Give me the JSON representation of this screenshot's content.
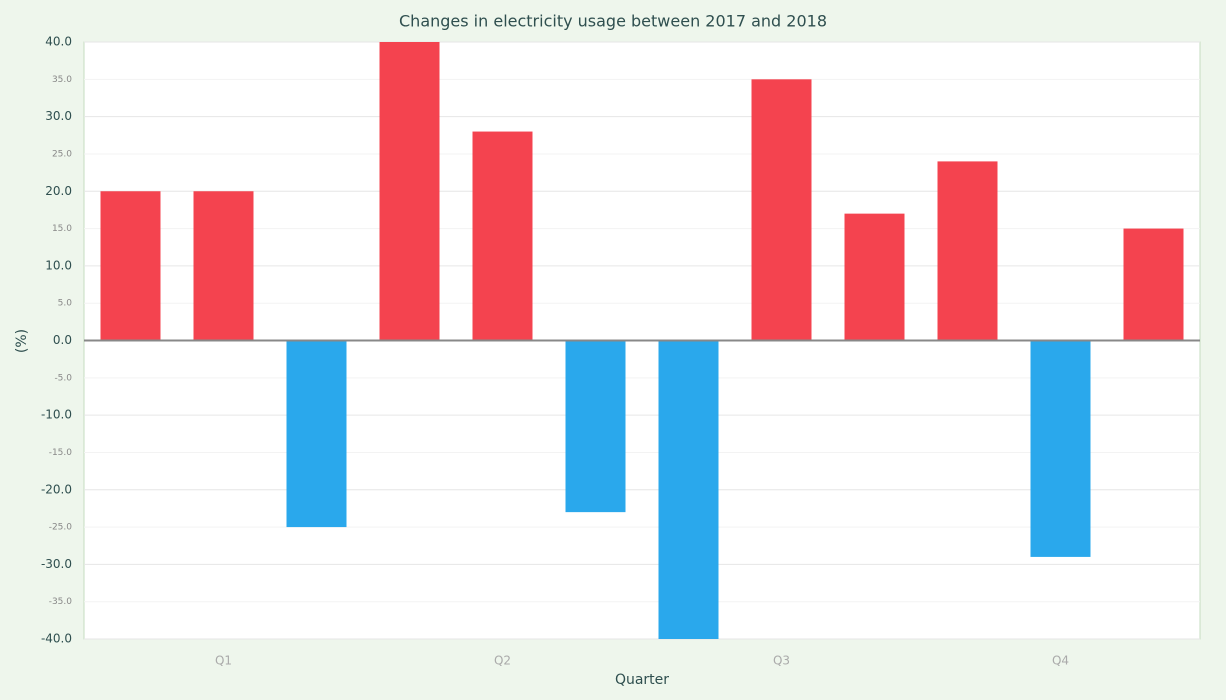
{
  "chart_data": {
    "type": "bar",
    "title": "Changes in electricity usage between 2017 and 2018",
    "xlabel": "Quarter",
    "ylabel": "(%)",
    "categories": [
      null,
      "Q1",
      null,
      null,
      "Q2",
      null,
      null,
      "Q3",
      null,
      null,
      "Q4",
      null
    ],
    "values": [
      20,
      20,
      -25,
      40,
      28,
      -23,
      -40,
      35,
      17,
      24,
      -29,
      15
    ],
    "color_positive": "#f4434f",
    "color_negative": "#2aa8ec",
    "ylim": [
      -40,
      40
    ],
    "yticks": [
      {
        "value": -40,
        "label": "-40.0"
      },
      {
        "value": -35,
        "label": "-35.0"
      },
      {
        "value": -30,
        "label": "-30.0"
      },
      {
        "value": -25,
        "label": "-25.0"
      },
      {
        "value": -20,
        "label": "-20.0"
      },
      {
        "value": -15,
        "label": "-15.0"
      },
      {
        "value": -10,
        "label": "-10.0"
      },
      {
        "value": -5,
        "label": "-5.0"
      },
      {
        "value": 0,
        "label": "0.0"
      },
      {
        "value": 5,
        "label": "5.0"
      },
      {
        "value": 10,
        "label": "10.0"
      },
      {
        "value": 15,
        "label": "15.0"
      },
      {
        "value": 20,
        "label": "20.0"
      },
      {
        "value": 25,
        "label": "25.0"
      },
      {
        "value": 30,
        "label": "30.0"
      },
      {
        "value": 35,
        "label": "35.0"
      },
      {
        "value": 40,
        "label": "40.0"
      }
    ],
    "grid": true
  }
}
